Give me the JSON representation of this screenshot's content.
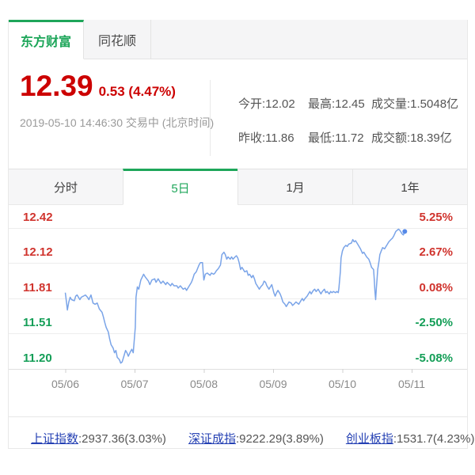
{
  "colors": {
    "accent_green": "#1ea65a",
    "price_red": "#cc0000",
    "axis_red": "#d0342e",
    "axis_green": "#149e57",
    "line_blue": "#7aa4e8",
    "marker_blue": "#5589e8",
    "link_blue": "#2440b3"
  },
  "source_tabs": [
    {
      "label": "东方财富",
      "active": true
    },
    {
      "label": "同花顺",
      "active": false
    }
  ],
  "quote": {
    "price": "12.39",
    "change": "0.53 (4.47%)",
    "timestamp": "2019-05-10 14:46:30 交易中 (北京时间)",
    "stats": [
      [
        "今开:12.02",
        "最高:12.45",
        "成交量:1.5048亿"
      ],
      [
        "昨收:11.86",
        "最低:11.72",
        "成交额:18.39亿"
      ]
    ]
  },
  "period_tabs": [
    {
      "label": "分时",
      "active": false
    },
    {
      "label": "5日",
      "active": true
    },
    {
      "label": "1月",
      "active": false
    },
    {
      "label": "1年",
      "active": false
    }
  ],
  "chart_data": {
    "type": "line",
    "x_axis": {
      "labels": [
        "05/06",
        "05/07",
        "05/08",
        "05/09",
        "05/10",
        "05/11"
      ],
      "x_unit": "day index, 0 = 05/06 tick"
    },
    "y_axis": {
      "price_labels": [
        "12.42",
        "12.12",
        "11.81",
        "11.51",
        "11.20"
      ],
      "pct_labels": [
        "5.25%",
        "2.67%",
        "0.08%",
        "-2.50%",
        "-5.08%"
      ],
      "prices": [
        12.42,
        12.12,
        11.81,
        11.51,
        11.2
      ],
      "label_colors": [
        "#d0342e",
        "#d0342e",
        "#d0342e",
        "#149e57",
        "#149e57"
      ]
    },
    "grid": true,
    "line_color": "#7aa4e8",
    "marker_color": "#5589e8",
    "points": [
      [
        0,
        11.86
      ],
      [
        0.02,
        11.76
      ],
      [
        0.03,
        11.71
      ],
      [
        0.05,
        11.78
      ],
      [
        0.07,
        11.82
      ],
      [
        0.09,
        11.8
      ],
      [
        0.13,
        11.79
      ],
      [
        0.15,
        11.83
      ],
      [
        0.17,
        11.84
      ],
      [
        0.21,
        11.8
      ],
      [
        0.23,
        11.82
      ],
      [
        0.26,
        11.83
      ],
      [
        0.29,
        11.84
      ],
      [
        0.32,
        11.82
      ],
      [
        0.34,
        11.8
      ],
      [
        0.37,
        11.84
      ],
      [
        0.4,
        11.77
      ],
      [
        0.43,
        11.76
      ],
      [
        0.46,
        11.77
      ],
      [
        0.49,
        11.72
      ],
      [
        0.53,
        11.69
      ],
      [
        0.55,
        11.65
      ],
      [
        0.57,
        11.6
      ],
      [
        0.59,
        11.56
      ],
      [
        0.62,
        11.52
      ],
      [
        0.64,
        11.46
      ],
      [
        0.66,
        11.41
      ],
      [
        0.69,
        11.38
      ],
      [
        0.71,
        11.34
      ],
      [
        0.73,
        11.36
      ],
      [
        0.75,
        11.3
      ],
      [
        0.78,
        11.28
      ],
      [
        0.8,
        11.25
      ],
      [
        0.82,
        11.26
      ],
      [
        0.85,
        11.32
      ],
      [
        0.87,
        11.36
      ],
      [
        0.89,
        11.34
      ],
      [
        0.91,
        11.31
      ],
      [
        0.94,
        11.35
      ],
      [
        0.96,
        11.37
      ],
      [
        0.98,
        11.34
      ],
      [
        1.01,
        11.56
      ],
      [
        1.02,
        11.82
      ],
      [
        1.04,
        11.91
      ],
      [
        1.06,
        11.89
      ],
      [
        1.09,
        11.97
      ],
      [
        1.13,
        12.02
      ],
      [
        1.15,
        12.0
      ],
      [
        1.2,
        11.96
      ],
      [
        1.22,
        11.93
      ],
      [
        1.25,
        11.97
      ],
      [
        1.29,
        11.98
      ],
      [
        1.31,
        11.95
      ],
      [
        1.34,
        11.98
      ],
      [
        1.38,
        11.94
      ],
      [
        1.41,
        11.96
      ],
      [
        1.45,
        11.93
      ],
      [
        1.47,
        11.95
      ],
      [
        1.52,
        11.92
      ],
      [
        1.54,
        11.94
      ],
      [
        1.57,
        11.92
      ],
      [
        1.61,
        11.92
      ],
      [
        1.63,
        11.9
      ],
      [
        1.66,
        11.92
      ],
      [
        1.7,
        11.89
      ],
      [
        1.73,
        11.9
      ],
      [
        1.75,
        11.88
      ],
      [
        1.79,
        11.92
      ],
      [
        1.82,
        11.95
      ],
      [
        1.84,
        11.98
      ],
      [
        1.86,
        12.02
      ],
      [
        1.89,
        12.04
      ],
      [
        1.91,
        12.07
      ],
      [
        1.93,
        12.1
      ],
      [
        1.95,
        12.12
      ],
      [
        1.98,
        12.12
      ],
      [
        1.99,
        12.04
      ],
      [
        2.0,
        11.97
      ],
      [
        2.02,
        12.02
      ],
      [
        2.05,
        12.03
      ],
      [
        2.07,
        12.02
      ],
      [
        2.09,
        12.01
      ],
      [
        2.11,
        12.03
      ],
      [
        2.14,
        12.02
      ],
      [
        2.16,
        12.03
      ],
      [
        2.18,
        12.05
      ],
      [
        2.21,
        12.07
      ],
      [
        2.24,
        12.1
      ],
      [
        2.26,
        12.19
      ],
      [
        2.29,
        12.21
      ],
      [
        2.31,
        12.19
      ],
      [
        2.33,
        12.15
      ],
      [
        2.35,
        12.17
      ],
      [
        2.38,
        12.15
      ],
      [
        2.4,
        12.17
      ],
      [
        2.42,
        12.15
      ],
      [
        2.45,
        12.17
      ],
      [
        2.47,
        12.18
      ],
      [
        2.49,
        12.16
      ],
      [
        2.51,
        12.12
      ],
      [
        2.53,
        12.06
      ],
      [
        2.55,
        12.08
      ],
      [
        2.57,
        12.06
      ],
      [
        2.59,
        12.04
      ],
      [
        2.62,
        12.05
      ],
      [
        2.64,
        12.01
      ],
      [
        2.66,
        12.02
      ],
      [
        2.69,
        11.99
      ],
      [
        2.71,
        12.01
      ],
      [
        2.73,
        11.98
      ],
      [
        2.75,
        11.94
      ],
      [
        2.78,
        11.91
      ],
      [
        2.8,
        11.89
      ],
      [
        2.82,
        11.91
      ],
      [
        2.85,
        11.93
      ],
      [
        2.87,
        11.96
      ],
      [
        2.89,
        11.95
      ],
      [
        2.91,
        11.92
      ],
      [
        2.94,
        11.89
      ],
      [
        2.96,
        11.91
      ],
      [
        2.98,
        11.93
      ],
      [
        3.01,
        11.86
      ],
      [
        3.03,
        11.83
      ],
      [
        3.05,
        11.86
      ],
      [
        3.07,
        11.88
      ],
      [
        3.1,
        11.85
      ],
      [
        3.12,
        11.82
      ],
      [
        3.14,
        11.78
      ],
      [
        3.17,
        11.76
      ],
      [
        3.19,
        11.74
      ],
      [
        3.21,
        11.76
      ],
      [
        3.23,
        11.78
      ],
      [
        3.26,
        11.77
      ],
      [
        3.28,
        11.75
      ],
      [
        3.3,
        11.76
      ],
      [
        3.33,
        11.78
      ],
      [
        3.37,
        11.76
      ],
      [
        3.39,
        11.78
      ],
      [
        3.42,
        11.81
      ],
      [
        3.44,
        11.79
      ],
      [
        3.46,
        11.81
      ],
      [
        3.49,
        11.83
      ],
      [
        3.51,
        11.85
      ],
      [
        3.53,
        11.87
      ],
      [
        3.55,
        11.85
      ],
      [
        3.58,
        11.88
      ],
      [
        3.6,
        11.89
      ],
      [
        3.62,
        11.87
      ],
      [
        3.65,
        11.89
      ],
      [
        3.67,
        11.87
      ],
      [
        3.69,
        11.85
      ],
      [
        3.71,
        11.87
      ],
      [
        3.74,
        11.89
      ],
      [
        3.76,
        11.86
      ],
      [
        3.78,
        11.87
      ],
      [
        3.81,
        11.85
      ],
      [
        3.83,
        11.87
      ],
      [
        3.85,
        11.86
      ],
      [
        3.87,
        11.87
      ],
      [
        3.9,
        11.86
      ],
      [
        3.92,
        11.87
      ],
      [
        3.94,
        11.86
      ],
      [
        3.95,
        11.9
      ],
      [
        3.97,
        12.04
      ],
      [
        3.98,
        12.16
      ],
      [
        4.0,
        12.22
      ],
      [
        4.02,
        12.25
      ],
      [
        4.05,
        12.27
      ],
      [
        4.07,
        12.26
      ],
      [
        4.09,
        12.28
      ],
      [
        4.13,
        12.29
      ],
      [
        4.15,
        12.32
      ],
      [
        4.17,
        12.3
      ],
      [
        4.19,
        12.31
      ],
      [
        4.22,
        12.28
      ],
      [
        4.24,
        12.26
      ],
      [
        4.26,
        12.24
      ],
      [
        4.29,
        12.2
      ],
      [
        4.31,
        12.21
      ],
      [
        4.33,
        12.19
      ],
      [
        4.35,
        12.17
      ],
      [
        4.38,
        12.15
      ],
      [
        4.4,
        12.12
      ],
      [
        4.42,
        12.08
      ],
      [
        4.45,
        12.06
      ],
      [
        4.46,
        11.97
      ],
      [
        4.47,
        11.87
      ],
      [
        4.48,
        11.8
      ],
      [
        4.49,
        11.9
      ],
      [
        4.5,
        11.98
      ],
      [
        4.51,
        12.06
      ],
      [
        4.53,
        12.14
      ],
      [
        4.54,
        12.19
      ],
      [
        4.56,
        12.22
      ],
      [
        4.58,
        12.25
      ],
      [
        4.61,
        12.24
      ],
      [
        4.63,
        12.26
      ],
      [
        4.65,
        12.28
      ],
      [
        4.67,
        12.3
      ],
      [
        4.7,
        12.32
      ],
      [
        4.72,
        12.33
      ],
      [
        4.74,
        12.35
      ],
      [
        4.77,
        12.39
      ],
      [
        4.79,
        12.4
      ],
      [
        4.81,
        12.41
      ],
      [
        4.83,
        12.4
      ],
      [
        4.86,
        12.37
      ],
      [
        4.88,
        12.36
      ],
      [
        4.9,
        12.39
      ]
    ]
  },
  "index_links": [
    {
      "name": "上证指数",
      "value": ":2937.36(3.03%)"
    },
    {
      "name": "深证成指",
      "value": ":9222.29(3.89%)"
    },
    {
      "name": "创业板指",
      "value": ":1531.7(4.23%)"
    }
  ]
}
